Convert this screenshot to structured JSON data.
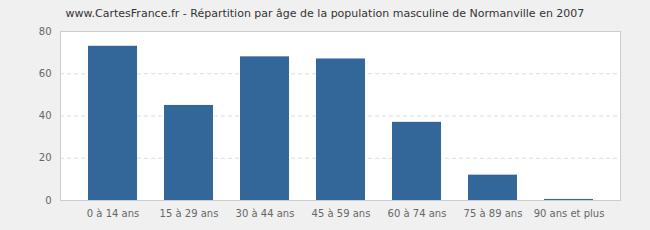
{
  "chart_data": {
    "type": "bar",
    "title": "www.CartesFrance.fr - Répartition par âge de la population masculine de Normanville en 2007",
    "categories": [
      "0 à 14 ans",
      "15 à 29 ans",
      "30 à 44 ans",
      "45 à 59 ans",
      "60 à 74 ans",
      "75 à 89 ans",
      "90 ans et plus"
    ],
    "values": [
      73,
      45,
      68,
      67,
      37,
      12,
      0.5
    ],
    "color": "#336699",
    "ylim": [
      0,
      80
    ],
    "yticks": [
      0,
      20,
      40,
      60,
      80
    ],
    "grid": true
  }
}
